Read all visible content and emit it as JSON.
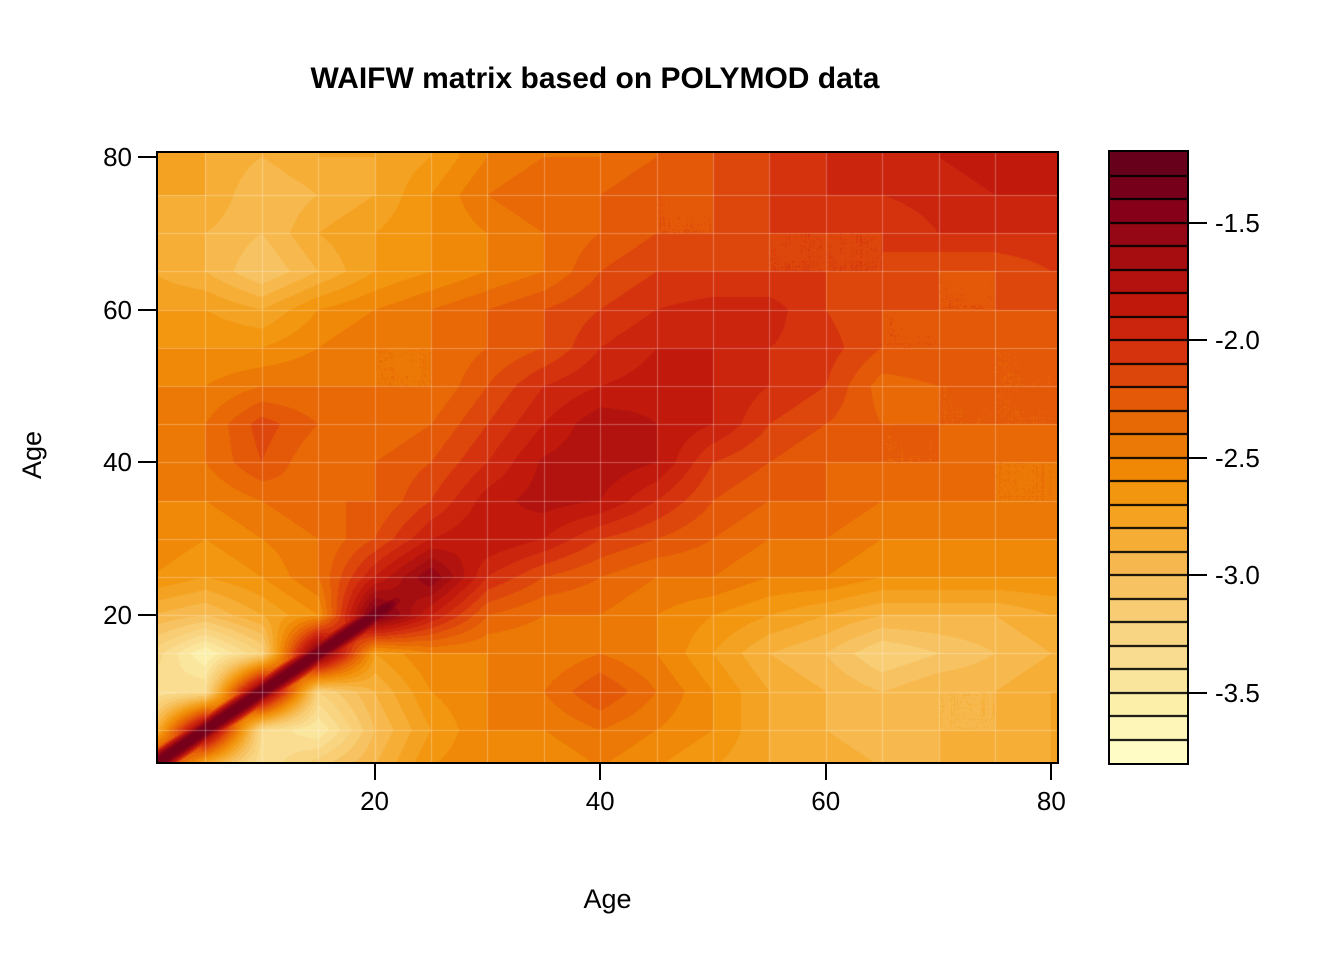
{
  "title": "WAIFW matrix based on POLYMOD data",
  "x_axis": {
    "label": "Age",
    "tick_values": [
      20,
      40,
      60,
      80
    ],
    "tick_labels": [
      "20",
      "40",
      "60",
      "80"
    ]
  },
  "y_axis": {
    "label": "Age",
    "tick_values": [
      20,
      40,
      60,
      80
    ],
    "tick_labels": [
      "20",
      "40",
      "60",
      "80"
    ]
  },
  "legend": {
    "tick_values": [
      -1.5,
      -2.0,
      -2.5,
      -3.0,
      -3.5
    ],
    "tick_labels": [
      "-1.5",
      "-2.0",
      "-2.5",
      "-3.0",
      "-3.5"
    ]
  },
  "chart_data": {
    "type": "heatmap",
    "title": "WAIFW matrix based on POLYMOD data",
    "xlabel": "Age",
    "ylabel": "Age",
    "x_range": [
      0.8,
      80.5
    ],
    "y_range": [
      0.8,
      80.5
    ],
    "value_note": "filled-contour levels of log10 contact intensity; darker = higher",
    "levels": {
      "min": -3.8,
      "max": -1.2,
      "step": 0.1,
      "n_bands": 26
    },
    "ages": [
      0,
      5,
      10,
      15,
      20,
      25,
      30,
      35,
      40,
      45,
      50,
      55,
      60,
      65,
      70,
      75,
      80
    ],
    "grid_row_order": "rows indexed by participant age y ascending (row 0 = age 0), columns by contact age x ascending",
    "grid": [
      [
        -1.45,
        -3.0,
        -3.4,
        -3.1,
        -2.9,
        -2.6,
        -2.5,
        -2.6,
        -2.5,
        -2.6,
        -2.7,
        -2.8,
        -2.8,
        -2.9,
        -2.9,
        -2.8,
        -2.8
      ],
      [
        -3.1,
        -1.35,
        -3.3,
        -3.5,
        -3.0,
        -2.7,
        -2.5,
        -2.5,
        -2.4,
        -2.5,
        -2.6,
        -2.8,
        -2.9,
        -3.0,
        -2.9,
        -2.9,
        -2.8
      ],
      [
        -3.4,
        -3.3,
        -1.3,
        -3.2,
        -2.9,
        -2.6,
        -2.5,
        -2.4,
        -2.2,
        -2.4,
        -2.6,
        -2.8,
        -2.9,
        -3.0,
        -2.9,
        -2.9,
        -2.8
      ],
      [
        -3.2,
        -3.6,
        -3.2,
        -1.3,
        -2.7,
        -2.5,
        -2.5,
        -2.5,
        -2.4,
        -2.5,
        -2.7,
        -2.9,
        -3.0,
        -3.2,
        -3.1,
        -3.0,
        -2.9
      ],
      [
        -2.9,
        -3.0,
        -2.8,
        -2.6,
        -1.35,
        -1.9,
        -2.3,
        -2.4,
        -2.4,
        -2.5,
        -2.6,
        -2.7,
        -2.8,
        -2.9,
        -2.9,
        -2.9,
        -2.8
      ],
      [
        -2.6,
        -2.7,
        -2.6,
        -2.4,
        -1.9,
        -1.5,
        -2.0,
        -2.2,
        -2.3,
        -2.4,
        -2.4,
        -2.5,
        -2.5,
        -2.6,
        -2.6,
        -2.6,
        -2.6
      ],
      [
        -2.5,
        -2.6,
        -2.5,
        -2.4,
        -2.2,
        -1.9,
        -1.8,
        -1.9,
        -2.1,
        -2.2,
        -2.3,
        -2.4,
        -2.4,
        -2.5,
        -2.5,
        -2.5,
        -2.5
      ],
      [
        -2.5,
        -2.5,
        -2.4,
        -2.3,
        -2.3,
        -2.1,
        -1.85,
        -1.75,
        -1.8,
        -2.0,
        -2.2,
        -2.3,
        -2.3,
        -2.4,
        -2.4,
        -2.4,
        -2.4
      ],
      [
        -2.5,
        -2.4,
        -2.2,
        -2.4,
        -2.3,
        -2.2,
        -2.0,
        -1.78,
        -1.72,
        -1.8,
        -2.1,
        -2.2,
        -2.3,
        -2.3,
        -2.3,
        -2.4,
        -2.4
      ],
      [
        -2.5,
        -2.4,
        -2.15,
        -2.3,
        -2.4,
        -2.3,
        -2.1,
        -1.9,
        -1.72,
        -1.8,
        -1.9,
        -2.1,
        -2.2,
        -2.3,
        -2.3,
        -2.3,
        -2.3
      ],
      [
        -2.5,
        -2.5,
        -2.4,
        -2.4,
        -2.4,
        -2.4,
        -2.2,
        -2.0,
        -1.9,
        -1.85,
        -1.9,
        -2.0,
        -2.1,
        -2.35,
        -2.3,
        -2.3,
        -2.3
      ],
      [
        -2.6,
        -2.6,
        -2.6,
        -2.5,
        -2.4,
        -2.4,
        -2.3,
        -2.2,
        -2.0,
        -1.9,
        -1.9,
        -2.0,
        -2.05,
        -2.2,
        -2.2,
        -2.3,
        -2.3
      ],
      [
        -2.7,
        -2.7,
        -2.8,
        -2.6,
        -2.5,
        -2.4,
        -2.3,
        -2.2,
        -2.1,
        -2.0,
        -1.95,
        -1.95,
        -2.1,
        -2.2,
        -2.2,
        -2.2,
        -2.2
      ],
      [
        -2.8,
        -2.9,
        -3.1,
        -2.9,
        -2.7,
        -2.6,
        -2.5,
        -2.4,
        -2.2,
        -2.1,
        -2.1,
        -2.1,
        -2.1,
        -2.1,
        -2.2,
        -2.2,
        -2.1
      ],
      [
        -2.8,
        -2.9,
        -3.0,
        -2.8,
        -2.7,
        -2.6,
        -2.5,
        -2.4,
        -2.3,
        -2.2,
        -2.2,
        -2.1,
        -2.1,
        -2.1,
        -2.0,
        -2.0,
        -2.0
      ],
      [
        -2.8,
        -2.8,
        -3.0,
        -2.9,
        -2.8,
        -2.6,
        -2.4,
        -2.3,
        -2.3,
        -2.2,
        -2.2,
        -2.1,
        -2.0,
        -2.0,
        -1.95,
        -1.9,
        -1.9
      ],
      [
        -2.7,
        -2.8,
        -2.9,
        -2.8,
        -2.8,
        -2.7,
        -2.5,
        -2.4,
        -2.4,
        -2.3,
        -2.2,
        -2.1,
        -2.0,
        -1.95,
        -1.9,
        -1.85,
        -1.8
      ]
    ],
    "diagonal_ridge": {
      "peak": -1.3,
      "falloff": 0.28,
      "center_max": 24,
      "fade_start": 21,
      "fade_rate": 0.25
    },
    "palette_low_to_high": [
      "#FFFDC5",
      "#FCF0AC",
      "#FADE92",
      "#F8CF78",
      "#F7BC56",
      "#F5A727",
      "#F29007",
      "#EA7205",
      "#E25309",
      "#D32D0F",
      "#BE170C",
      "#A30D11",
      "#840019",
      "#67001A"
    ],
    "gridlines": {
      "step_years": 5,
      "color": "rgba(255,255,255,0.30)"
    },
    "legend_position": "right",
    "grid_on": true
  }
}
